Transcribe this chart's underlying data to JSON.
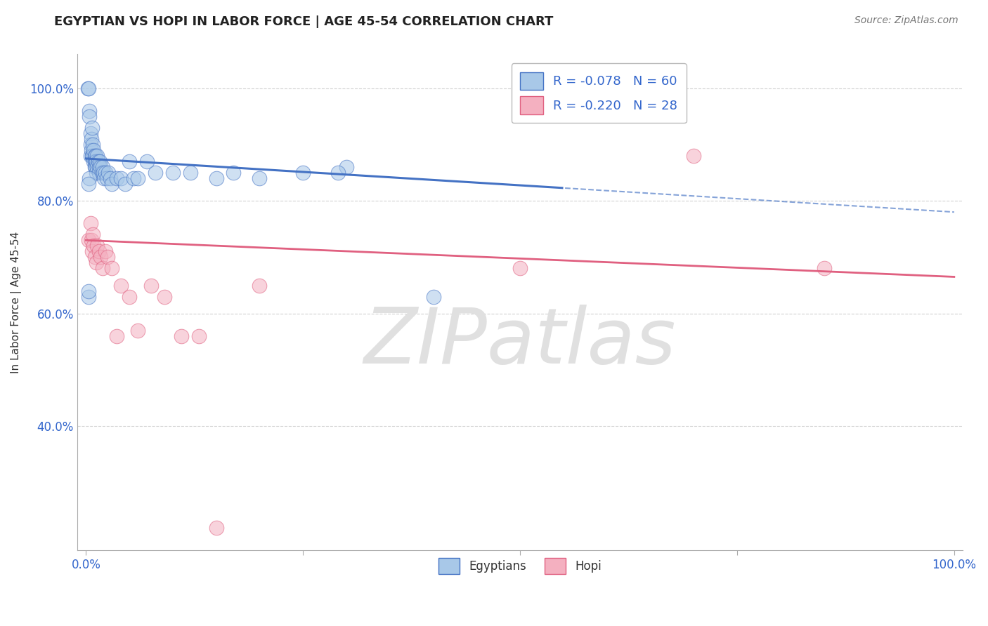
{
  "title": "EGYPTIAN VS HOPI IN LABOR FORCE | AGE 45-54 CORRELATION CHART",
  "source": "Source: ZipAtlas.com",
  "ylabel": "In Labor Force | Age 45-54",
  "legend_label1": "Egyptians",
  "legend_label2": "Hopi",
  "R1": -0.078,
  "N1": 60,
  "R2": -0.22,
  "N2": 28,
  "color1": "#A8C8E8",
  "color2": "#F4B0C0",
  "trend1_color": "#4472C4",
  "trend2_color": "#E06080",
  "background_color": "#ffffff",
  "grid_color": "#cccccc",
  "xlim": [
    -0.01,
    1.01
  ],
  "ylim": [
    0.18,
    1.06
  ],
  "yticks": [
    0.4,
    0.6,
    0.8,
    1.0
  ],
  "xticks": [
    0.0,
    0.25,
    0.5,
    0.75,
    1.0
  ],
  "watermark": "ZIPatlas",
  "watermark_color": "#e0e0e0",
  "trend1_intercept": 0.875,
  "trend1_slope": -0.095,
  "trend1_solid_end": 0.55,
  "trend2_intercept": 0.73,
  "trend2_slope": -0.065,
  "blue_x": [
    0.002,
    0.003,
    0.004,
    0.004,
    0.005,
    0.005,
    0.005,
    0.006,
    0.006,
    0.007,
    0.007,
    0.008,
    0.008,
    0.009,
    0.009,
    0.01,
    0.01,
    0.01,
    0.011,
    0.011,
    0.011,
    0.012,
    0.012,
    0.013,
    0.013,
    0.014,
    0.015,
    0.015,
    0.016,
    0.017,
    0.018,
    0.019,
    0.02,
    0.021,
    0.022,
    0.024,
    0.026,
    0.028,
    0.03,
    0.035,
    0.04,
    0.045,
    0.05,
    0.055,
    0.06,
    0.07,
    0.08,
    0.1,
    0.12,
    0.15,
    0.17,
    0.2,
    0.25,
    0.3,
    0.004,
    0.29,
    0.003,
    0.4,
    0.003,
    0.003
  ],
  "blue_y": [
    1.0,
    1.0,
    0.96,
    0.95,
    0.92,
    0.9,
    0.88,
    0.91,
    0.89,
    0.93,
    0.88,
    0.9,
    0.88,
    0.89,
    0.87,
    0.88,
    0.87,
    0.86,
    0.88,
    0.87,
    0.86,
    0.87,
    0.85,
    0.88,
    0.86,
    0.87,
    0.86,
    0.85,
    0.87,
    0.86,
    0.85,
    0.86,
    0.85,
    0.84,
    0.85,
    0.84,
    0.85,
    0.84,
    0.83,
    0.84,
    0.84,
    0.83,
    0.87,
    0.84,
    0.84,
    0.87,
    0.85,
    0.85,
    0.85,
    0.84,
    0.85,
    0.84,
    0.85,
    0.86,
    0.84,
    0.85,
    0.83,
    0.63,
    0.63,
    0.64
  ],
  "pink_x": [
    0.003,
    0.005,
    0.006,
    0.007,
    0.008,
    0.009,
    0.01,
    0.012,
    0.013,
    0.015,
    0.017,
    0.019,
    0.022,
    0.025,
    0.03,
    0.035,
    0.04,
    0.05,
    0.06,
    0.075,
    0.09,
    0.11,
    0.13,
    0.15,
    0.2,
    0.5,
    0.7,
    0.85
  ],
  "pink_y": [
    0.73,
    0.76,
    0.73,
    0.71,
    0.74,
    0.72,
    0.7,
    0.69,
    0.72,
    0.71,
    0.7,
    0.68,
    0.71,
    0.7,
    0.68,
    0.56,
    0.65,
    0.63,
    0.57,
    0.65,
    0.63,
    0.56,
    0.56,
    0.22,
    0.65,
    0.68,
    0.88,
    0.68
  ]
}
